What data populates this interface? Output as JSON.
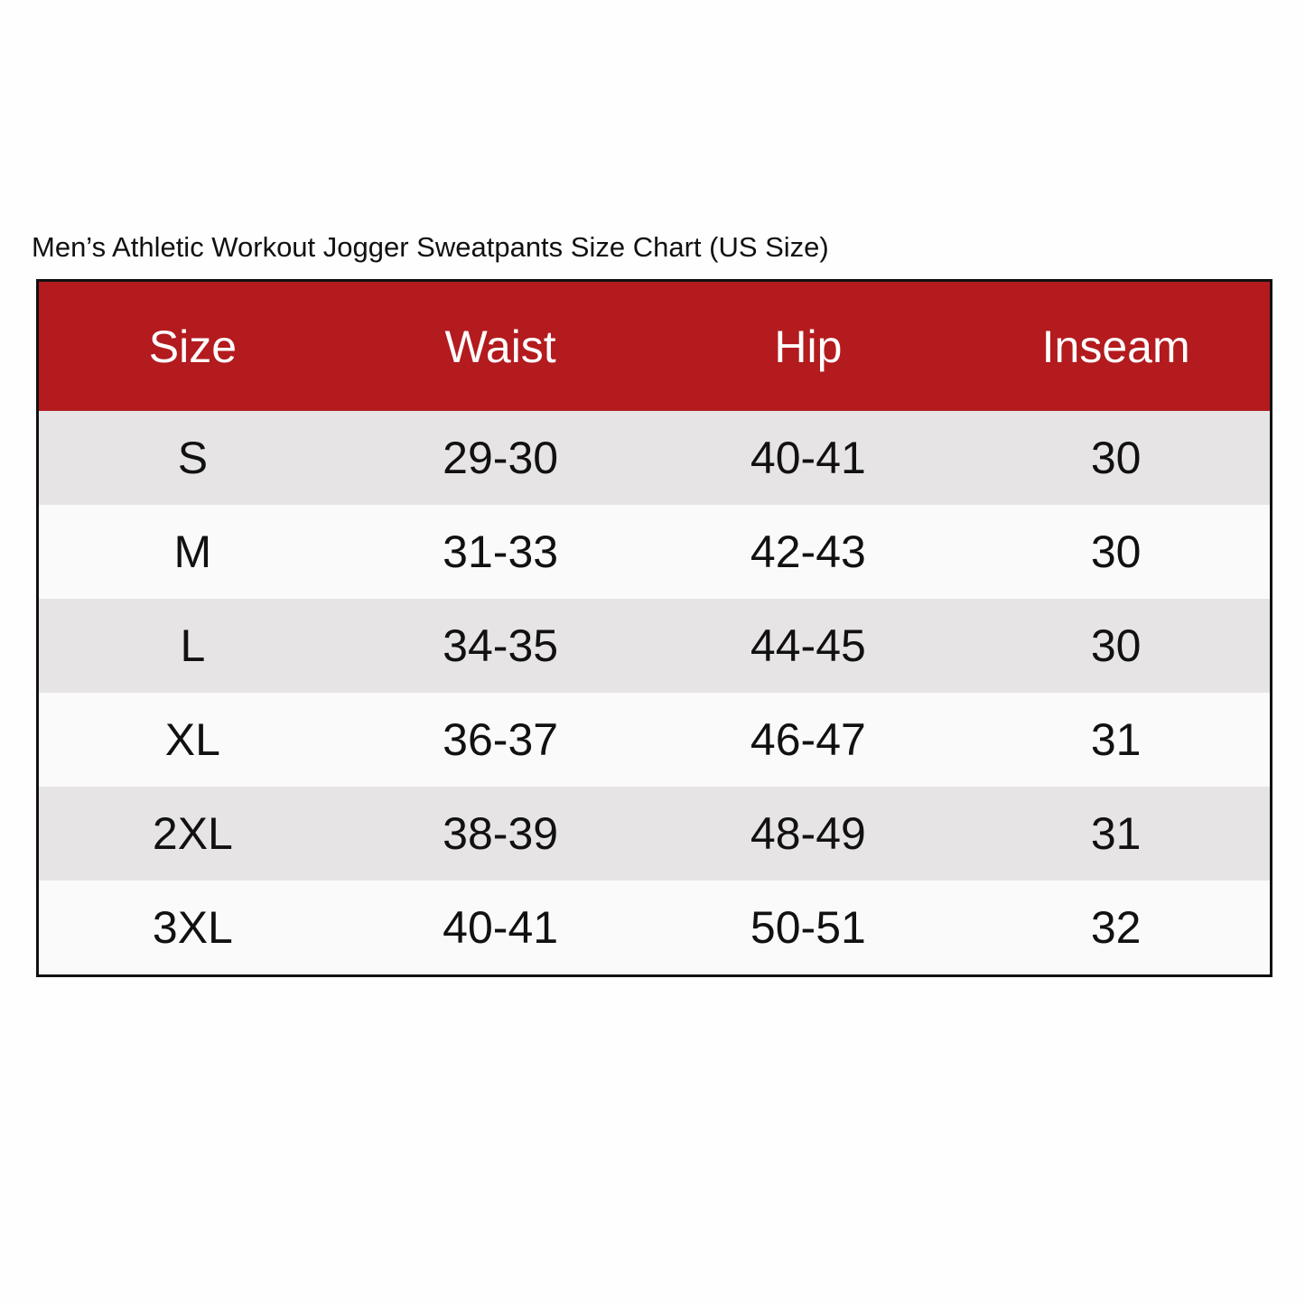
{
  "title": "Men’s Athletic Workout Jogger Sweatpants Size Chart (US Size)",
  "table": {
    "header": [
      "Size",
      "Waist",
      "Hip",
      "Inseam"
    ],
    "rows": [
      [
        "S",
        "29-30",
        "40-41",
        "30"
      ],
      [
        "M",
        "31-33",
        "42-43",
        "30"
      ],
      [
        "L",
        "34-35",
        "44-45",
        "30"
      ],
      [
        "XL",
        "36-37",
        "46-47",
        "31"
      ],
      [
        "2XL",
        "38-39",
        "48-49",
        "31"
      ],
      [
        "3XL",
        "40-41",
        "50-51",
        "32"
      ]
    ]
  }
}
